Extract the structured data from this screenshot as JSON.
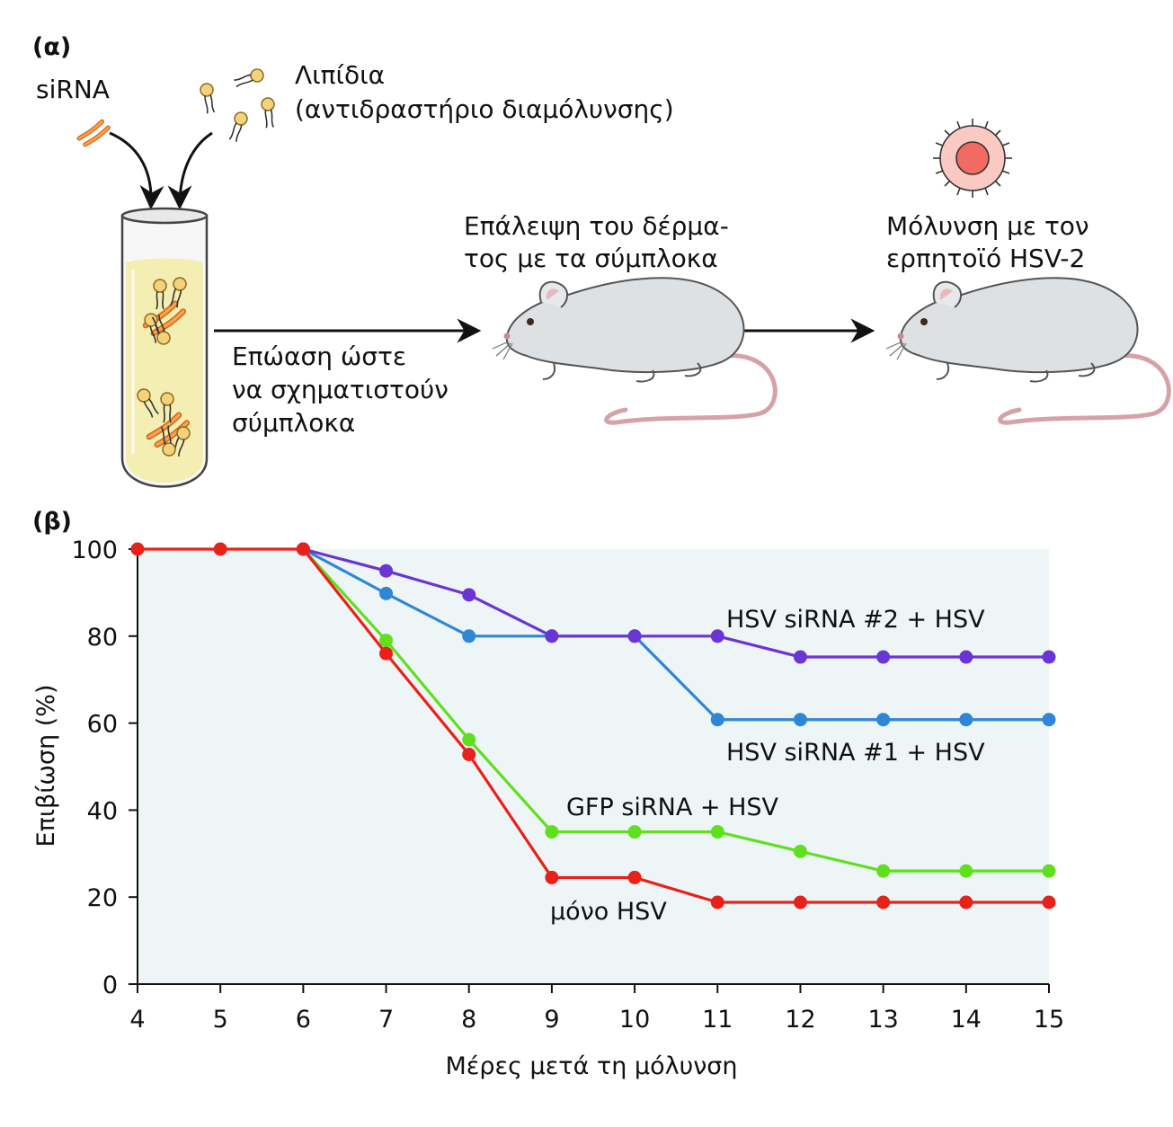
{
  "panel_a": {
    "label": "(α)",
    "sirna": "siRNA",
    "lipids_line1": "Λιπίδια",
    "lipids_line2": "(αντιδραστήριο διαμόλυνσης)",
    "incubation": "Επώαση ώστε\nνα σχηματιστούν\nσύμπλοκα",
    "skin_application": "Επάλειψη του δέρμα-\nτος με τα σύμπλοκα",
    "infection": "Μόλυνση με τον\nερπητοϊό HSV-2"
  },
  "panel_b": {
    "label": "(β)"
  },
  "colors": {
    "sirna2": "#6a35d4",
    "sirna1": "#2f86d6",
    "gfp": "#5ee01c",
    "hsv_only": "#e8211a",
    "plot_bg": "#eef5f7",
    "sirna_strand": "#f08a2e",
    "lipid_head": "#f4d27a",
    "tube_liquid": "#f5eeb2",
    "mouse": "#dde1e3",
    "virus": "#f26b62"
  },
  "chart_data": {
    "type": "line",
    "xlabel": "Μέρες μετά τη μόλυνση",
    "ylabel": "Επιβίωση (%)",
    "xlim": [
      4,
      15
    ],
    "ylim": [
      0,
      100
    ],
    "xticks": [
      4,
      5,
      6,
      7,
      8,
      9,
      10,
      11,
      12,
      13,
      14,
      15
    ],
    "yticks": [
      0,
      20,
      40,
      60,
      80,
      100
    ],
    "grid": false,
    "legend": "inline labels next to lines",
    "series": [
      {
        "name": "HSV siRNA #2 + HSV",
        "color": "#6a35d4",
        "x": [
          6,
          7,
          8,
          9,
          10,
          11,
          12,
          13,
          14,
          15
        ],
        "y": [
          100,
          95,
          89.5,
          80,
          80,
          80,
          75.2,
          75.2,
          75.2,
          75.2
        ]
      },
      {
        "name": "HSV siRNA #1 + HSV",
        "color": "#2f86d6",
        "x": [
          6,
          7,
          8,
          9,
          10,
          11,
          12,
          13,
          14,
          15
        ],
        "y": [
          100,
          89.8,
          80,
          80,
          80,
          60.8,
          60.8,
          60.8,
          60.8,
          60.8
        ]
      },
      {
        "name": "GFP siRNA + HSV",
        "color": "#5ee01c",
        "x": [
          6,
          7,
          8,
          9,
          10,
          11,
          12,
          13,
          14,
          15
        ],
        "y": [
          100,
          79,
          56.2,
          35,
          35,
          35,
          30.5,
          26,
          26,
          26
        ]
      },
      {
        "name": "μόνο HSV",
        "color": "#e8211a",
        "x": [
          4,
          5,
          6,
          7,
          8,
          9,
          10,
          11,
          12,
          13,
          14,
          15
        ],
        "y": [
          100,
          100,
          100,
          76,
          52.8,
          24.5,
          24.5,
          18.8,
          18.8,
          18.8,
          18.8,
          18.8
        ]
      }
    ]
  }
}
